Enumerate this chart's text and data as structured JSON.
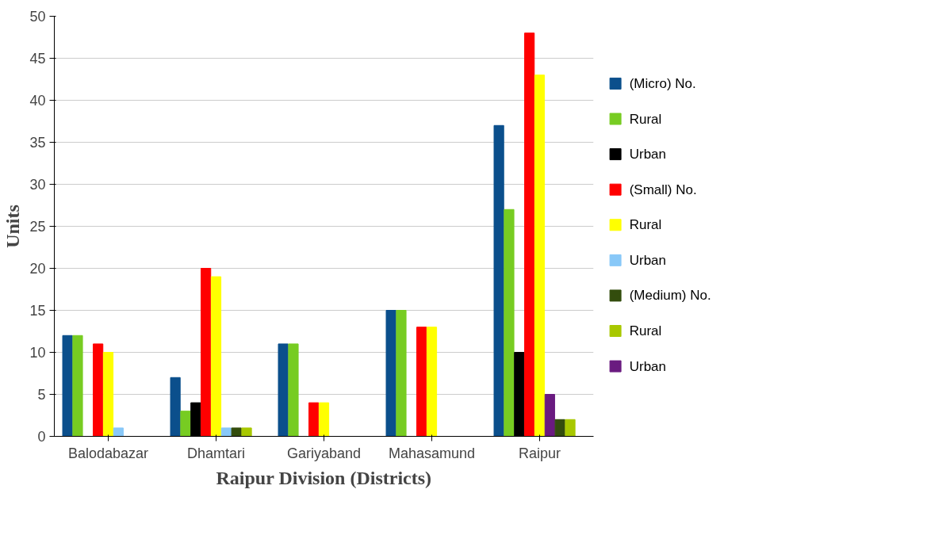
{
  "chart_data": {
    "type": "bar",
    "xlabel": "Raipur Division (Districts)",
    "ylabel": "Units",
    "categories": [
      "Balodabazar",
      "Dhamtari",
      "Gariyaband",
      "Mahasamund",
      "Raipur"
    ],
    "series": [
      {
        "name": "(Micro) No.",
        "color": "#0b4f8c",
        "values": [
          12,
          7,
          11,
          15,
          37
        ]
      },
      {
        "name": "Rural",
        "color": "#77cc22",
        "values": [
          12,
          3,
          11,
          15,
          27
        ]
      },
      {
        "name": "Urban",
        "color": "#000000",
        "values": [
          0,
          4,
          0,
          0,
          10
        ]
      },
      {
        "name": "(Small) No.",
        "color": "#ff0000",
        "values": [
          11,
          20,
          4,
          13,
          48
        ]
      },
      {
        "name": "Rural",
        "color": "#ffff00",
        "values": [
          10,
          19,
          4,
          13,
          43
        ]
      },
      {
        "name": "Urban",
        "color": "#88c8f8",
        "values": [
          1,
          1,
          0,
          0,
          5
        ],
        "colors": [
          "#88c8f8",
          "#88c8f8",
          "#88c8f8",
          "#88c8f8",
          "#6a1b80"
        ]
      },
      {
        "name": "(Medium) No.",
        "color": "#334d0d",
        "values": [
          0,
          1,
          0,
          0,
          2
        ]
      },
      {
        "name": "Rural",
        "color": "#a8c800",
        "values": [
          0,
          1,
          0,
          0,
          2
        ]
      },
      {
        "name": "Urban",
        "color": "#6a1b80",
        "values": [
          0,
          0,
          0,
          0,
          0
        ]
      }
    ],
    "ylim": [
      0,
      50
    ],
    "yticks": [
      0,
      5,
      10,
      15,
      20,
      25,
      30,
      35,
      40,
      45,
      50
    ],
    "grid": "y",
    "legend": "right"
  }
}
